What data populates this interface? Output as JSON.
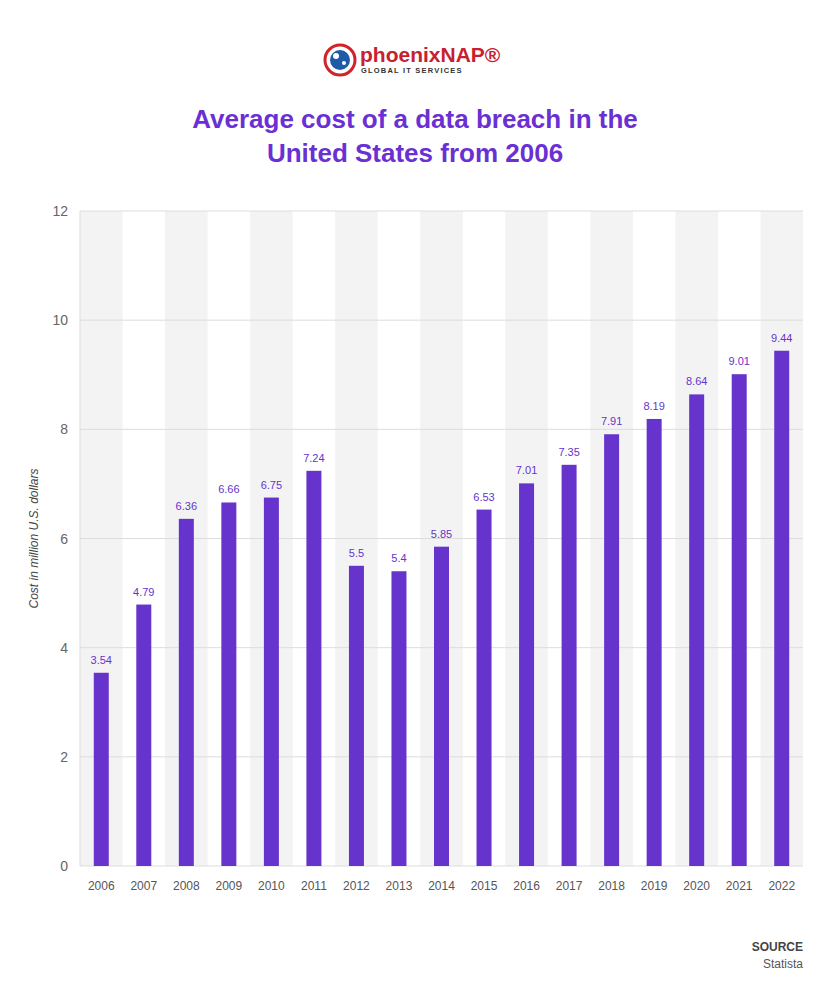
{
  "chart_data": {
    "type": "bar",
    "logo_text": "phoenixNAP®",
    "logo_subtext": "GLOBAL IT SERVICES",
    "title": "Average cost of a data breach in the United States from 2006",
    "y_label": "Cost in million U.S. dollars",
    "categories": [
      "2006",
      "2007",
      "2008",
      "2009",
      "2010",
      "2011",
      "2012",
      "2013",
      "2014",
      "2015",
      "2016",
      "2017",
      "2018",
      "2019",
      "2020",
      "2021",
      "2022"
    ],
    "values": [
      3.54,
      4.79,
      6.36,
      6.66,
      6.75,
      7.24,
      5.5,
      5.4,
      5.85,
      6.53,
      7.01,
      7.35,
      7.91,
      8.19,
      8.64,
      9.01,
      9.44
    ],
    "color": "#6633cc",
    "ylim": [
      0,
      12
    ],
    "yticks": [
      0,
      2,
      4,
      6,
      8,
      10,
      12
    ],
    "grid": true,
    "data_labels": true,
    "source_label": "SOURCE",
    "source": "Statista"
  }
}
